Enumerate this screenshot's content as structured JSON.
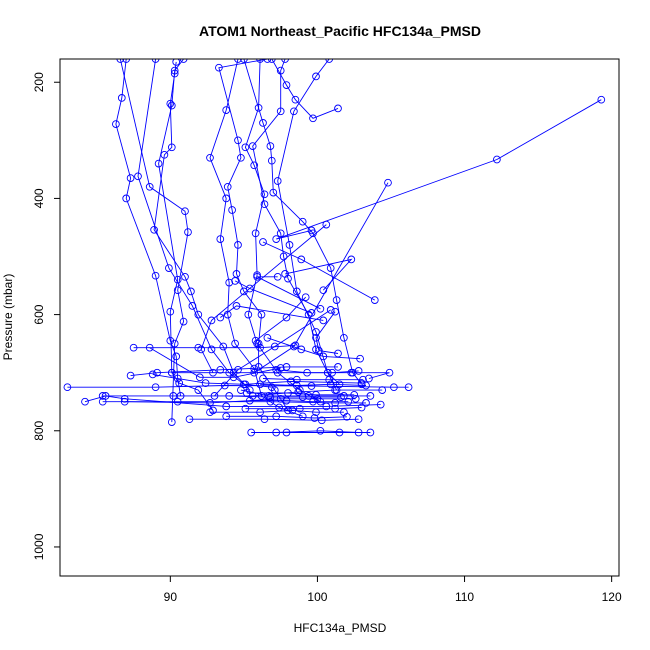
{
  "chart_data": {
    "type": "line",
    "title": "ATOM1 Northeast_Pacific HFC134a_PMSD",
    "xlabel": "HFC134a_PMSD",
    "ylabel": "Pressure (mbar)",
    "xlim": [
      82.5,
      120.5
    ],
    "ylim": [
      1050,
      160
    ],
    "y_reversed": true,
    "x_ticks": [
      90,
      100,
      110,
      120
    ],
    "y_ticks": [
      200,
      400,
      600,
      800,
      1000
    ],
    "grid": false,
    "legend": "none",
    "series_color": "#0000ff",
    "marker": "open-circle",
    "series": [
      {
        "points": [
          [
            87.0,
            160
          ],
          [
            86.7,
            227
          ],
          [
            86.3,
            272
          ],
          [
            87.3,
            365
          ],
          [
            87.0,
            400
          ],
          [
            89.0,
            533
          ],
          [
            90.0,
            645
          ],
          [
            90.4,
            672
          ],
          [
            90.5,
            710
          ],
          [
            90.7,
            740
          ]
        ]
      },
      {
        "points": [
          [
            90.4,
            165
          ],
          [
            90.3,
            185
          ],
          [
            90.0,
            237
          ],
          [
            90.1,
            312
          ],
          [
            89.6,
            325
          ],
          [
            88.9,
            454
          ],
          [
            91.0,
            535
          ],
          [
            91.4,
            560
          ],
          [
            91.9,
            600
          ],
          [
            93.6,
            655
          ],
          [
            94.3,
            700
          ],
          [
            95.4,
            730
          ]
        ]
      },
      {
        "points": [
          [
            90.9,
            160
          ],
          [
            90.3,
            180
          ],
          [
            90.1,
            240
          ],
          [
            89.2,
            340
          ],
          [
            90.5,
            540
          ],
          [
            90.0,
            595
          ],
          [
            90.1,
            700
          ],
          [
            90.6,
            718
          ],
          [
            91.9,
            730
          ],
          [
            92.9,
            765
          ]
        ]
      },
      {
        "points": [
          [
            86.6,
            160
          ],
          [
            88.6,
            380
          ],
          [
            91.0,
            422
          ],
          [
            91.2,
            458
          ],
          [
            90.5,
            558
          ],
          [
            90.9,
            612
          ],
          [
            90.3,
            650
          ],
          [
            90.1,
            785
          ]
        ]
      },
      {
        "points": [
          [
            89.0,
            160
          ],
          [
            87.8,
            362
          ],
          [
            89.9,
            520
          ],
          [
            91.5,
            585
          ],
          [
            92.8,
            660
          ],
          [
            94.0,
            700
          ],
          [
            95.0,
            720
          ],
          [
            96.9,
            725
          ]
        ]
      },
      {
        "points": [
          [
            95.0,
            160
          ],
          [
            96.3,
            270
          ],
          [
            96.8,
            310
          ],
          [
            96.9,
            335
          ],
          [
            97.0,
            390
          ],
          [
            99.0,
            440
          ],
          [
            99.7,
            460
          ],
          [
            100.9,
            520
          ],
          [
            101.3,
            575
          ],
          [
            101.8,
            640
          ],
          [
            102.4,
            700
          ],
          [
            103.0,
            720
          ]
        ]
      },
      {
        "points": [
          [
            94.6,
            160
          ],
          [
            93.8,
            248
          ],
          [
            92.7,
            330
          ],
          [
            93.8,
            400
          ],
          [
            93.4,
            470
          ],
          [
            94.0,
            545
          ],
          [
            93.9,
            600
          ],
          [
            94.4,
            650
          ],
          [
            95.7,
            693
          ],
          [
            96.2,
            740
          ],
          [
            97.4,
            760
          ],
          [
            99.0,
            775
          ]
        ]
      },
      {
        "points": [
          [
            96.1,
            160
          ],
          [
            96.0,
            244
          ],
          [
            95.1,
            312
          ],
          [
            95.7,
            343
          ],
          [
            96.4,
            393
          ],
          [
            95.8,
            460
          ],
          [
            95.9,
            532
          ],
          [
            95.3,
            600
          ],
          [
            95.9,
            650
          ],
          [
            97.3,
            700
          ],
          [
            98.8,
            730
          ],
          [
            100.2,
            750
          ]
        ]
      },
      {
        "points": [
          [
            97.8,
            160
          ],
          [
            97.5,
            180
          ],
          [
            97.5,
            250
          ],
          [
            95.6,
            310
          ],
          [
            96.4,
            410
          ],
          [
            97.5,
            460
          ],
          [
            97.7,
            500
          ],
          [
            98.0,
            538
          ],
          [
            99.4,
            600
          ],
          [
            99.9,
            660
          ],
          [
            100.7,
            700
          ],
          [
            101.5,
            720
          ]
        ]
      },
      {
        "points": [
          [
            100.8,
            160
          ],
          [
            99.9,
            190
          ],
          [
            98.4,
            250
          ],
          [
            97.3,
            370
          ],
          [
            98.1,
            480
          ],
          [
            98.6,
            560
          ],
          [
            99.9,
            630
          ],
          [
            100.7,
            700
          ],
          [
            101.3,
            730
          ]
        ]
      },
      {
        "points": [
          [
            96.9,
            160
          ],
          [
            97.9,
            205
          ],
          [
            98.5,
            230
          ],
          [
            99.7,
            262
          ],
          [
            101.4,
            245
          ]
        ]
      },
      {
        "points": [
          [
            96.6,
            160
          ],
          [
            93.3,
            175
          ],
          [
            94.6,
            300
          ],
          [
            94.8,
            330
          ],
          [
            93.9,
            380
          ],
          [
            94.2,
            420
          ],
          [
            94.6,
            480
          ],
          [
            94.5,
            530
          ],
          [
            95.0,
            560
          ],
          [
            96.2,
            600
          ],
          [
            96.0,
            650
          ],
          [
            96.0,
            690
          ],
          [
            97.1,
            730
          ],
          [
            98.0,
            765
          ]
        ]
      },
      {
        "points": [
          [
            119.3,
            230
          ],
          [
            112.2,
            333
          ],
          [
            97.2,
            470
          ],
          [
            99.6,
            455
          ]
        ]
      },
      {
        "points": [
          [
            104.8,
            373
          ],
          [
            98.4,
            655
          ],
          [
            95.7,
            700
          ]
        ]
      },
      {
        "points": [
          [
            100.4,
            558
          ],
          [
            102.3,
            505
          ],
          [
            97.8,
            530
          ]
        ]
      },
      {
        "points": [
          [
            103.9,
            575
          ],
          [
            98.9,
            505
          ],
          [
            96.3,
            475
          ]
        ]
      },
      {
        "points": [
          [
            100.2,
            590
          ],
          [
            95.9,
            535
          ],
          [
            97.3,
            535
          ]
        ]
      },
      {
        "points": [
          [
            100.9,
            592
          ],
          [
            97.1,
            655
          ],
          [
            94.6,
            695
          ],
          [
            93.0,
            740
          ]
        ]
      },
      {
        "points": [
          [
            100.4,
            610
          ],
          [
            94.5,
            585
          ],
          [
            93.4,
            605
          ]
        ]
      },
      {
        "points": [
          [
            99.6,
            597
          ],
          [
            95.4,
            555
          ],
          [
            94.4,
            542
          ]
        ]
      },
      {
        "points": [
          [
            100.6,
            445
          ],
          [
            92.8,
            610
          ],
          [
            92.1,
            660
          ],
          [
            92.9,
            700
          ]
        ]
      },
      {
        "points": [
          [
            95.8,
            645
          ],
          [
            97.9,
            605
          ],
          [
            99.2,
            570
          ]
        ]
      },
      {
        "points": [
          [
            90.1,
            700
          ],
          [
            102.3,
            700
          ],
          [
            104.9,
            700
          ],
          [
            103.5,
            710
          ]
        ]
      },
      {
        "points": [
          [
            87.5,
            657
          ],
          [
            91.9,
            657
          ],
          [
            96.1,
            657
          ],
          [
            98.5,
            653
          ]
        ]
      },
      {
        "points": [
          [
            88.6,
            657
          ],
          [
            92.0,
            708
          ],
          [
            94.3,
            708
          ],
          [
            97.5,
            692
          ]
        ]
      },
      {
        "points": [
          [
            83.0,
            725
          ],
          [
            89.0,
            725
          ],
          [
            93.7,
            722
          ],
          [
            99.6,
            723
          ],
          [
            105.2,
            725
          ],
          [
            106.2,
            725
          ]
        ]
      },
      {
        "points": [
          [
            84.2,
            750
          ],
          [
            85.6,
            740
          ],
          [
            86.9,
            745
          ],
          [
            93.8,
            758
          ],
          [
            100.6,
            758
          ],
          [
            104.3,
            755
          ]
        ]
      },
      {
        "points": [
          [
            85.4,
            740
          ],
          [
            90.2,
            740
          ],
          [
            95.6,
            740
          ],
          [
            98.7,
            733
          ],
          [
            101.2,
            730
          ],
          [
            104.4,
            730
          ]
        ]
      },
      {
        "points": [
          [
            85.4,
            750
          ],
          [
            90.5,
            750
          ],
          [
            96.8,
            750
          ],
          [
            101.2,
            752
          ],
          [
            103.3,
            752
          ]
        ]
      },
      {
        "points": [
          [
            86.9,
            750
          ],
          [
            92.7,
            752
          ],
          [
            97.5,
            745
          ],
          [
            100.0,
            745
          ],
          [
            102.6,
            745
          ]
        ]
      },
      {
        "points": [
          [
            87.3,
            705
          ],
          [
            89.1,
            700
          ],
          [
            93.4,
            695
          ],
          [
            97.9,
            690
          ],
          [
            101.4,
            690
          ]
        ]
      },
      {
        "points": [
          [
            88.8,
            703
          ],
          [
            92.4,
            718
          ],
          [
            95.1,
            720
          ],
          [
            98.2,
            715
          ],
          [
            103.0,
            718
          ]
        ]
      },
      {
        "points": [
          [
            93.8,
            775
          ],
          [
            97.2,
            775
          ],
          [
            99.8,
            778
          ],
          [
            102.0,
            776
          ]
        ]
      },
      {
        "points": [
          [
            91.3,
            780
          ],
          [
            96.4,
            780
          ],
          [
            100.3,
            782
          ],
          [
            102.8,
            780
          ]
        ]
      },
      {
        "points": [
          [
            95.5,
            803
          ],
          [
            97.9,
            803
          ],
          [
            101.5,
            803
          ],
          [
            103.6,
            803
          ]
        ]
      },
      {
        "points": [
          [
            97.2,
            803
          ],
          [
            100.2,
            800
          ],
          [
            102.8,
            803
          ]
        ]
      },
      {
        "points": [
          [
            95.1,
            762
          ],
          [
            98.8,
            762
          ],
          [
            101.2,
            762
          ],
          [
            103.0,
            760
          ]
        ]
      },
      {
        "points": [
          [
            92.7,
            768
          ],
          [
            96.1,
            768
          ],
          [
            98.3,
            765
          ],
          [
            99.9,
            768
          ],
          [
            101.8,
            768
          ]
        ]
      },
      {
        "points": [
          [
            94.8,
            730
          ],
          [
            96.7,
            740
          ],
          [
            99.4,
            740
          ],
          [
            101.8,
            740
          ],
          [
            103.6,
            740
          ]
        ]
      },
      {
        "points": [
          [
            95.2,
            735
          ],
          [
            98.0,
            735
          ],
          [
            99.9,
            738
          ],
          [
            102.5,
            738
          ]
        ]
      },
      {
        "points": [
          [
            96.3,
            710
          ],
          [
            98.6,
            712
          ],
          [
            100.8,
            712
          ],
          [
            103.1,
            712
          ]
        ]
      },
      {
        "points": [
          [
            97.2,
            695
          ],
          [
            99.3,
            700
          ],
          [
            101.0,
            700
          ],
          [
            102.8,
            697
          ]
        ]
      },
      {
        "points": [
          [
            96.1,
            720
          ],
          [
            98.6,
            722
          ],
          [
            100.9,
            720
          ],
          [
            103.3,
            722
          ]
        ]
      },
      {
        "points": [
          [
            95.4,
            748
          ],
          [
            97.9,
            748
          ],
          [
            99.7,
            750
          ],
          [
            102.1,
            750
          ]
        ]
      },
      {
        "points": [
          [
            94.0,
            740
          ],
          [
            96.8,
            742
          ],
          [
            99.0,
            742
          ],
          [
            101.6,
            742
          ]
        ]
      },
      {
        "points": [
          [
            101.2,
            595
          ],
          [
            99.9,
            640
          ],
          [
            100.1,
            662
          ],
          [
            101.4,
            667
          ]
        ]
      },
      {
        "points": [
          [
            96.6,
            640
          ],
          [
            98.9,
            660
          ],
          [
            100.4,
            672
          ],
          [
            102.9,
            676
          ]
        ]
      }
    ]
  }
}
